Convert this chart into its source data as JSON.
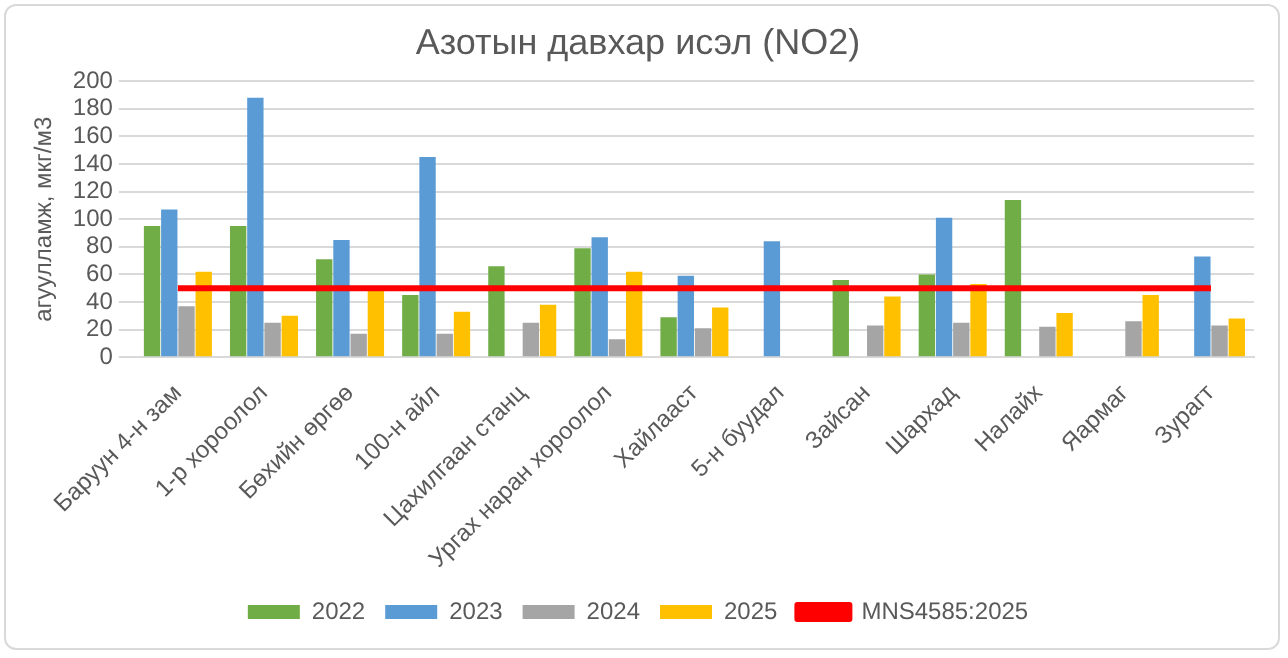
{
  "chart_data": {
    "type": "bar",
    "title": "Азотын давхар исэл (NO2)",
    "ylabel": "агуулламж, мкг/м3",
    "categories": [
      "Баруун 4-н зам",
      "1-р хороолол",
      "Бөхийн өргөө",
      "100-н айл",
      "Цахилгаан станц",
      "Ургах наран хороолол",
      "Хайлааст",
      "5-н буудал",
      "Зайсан",
      "Шархад",
      "Налайх",
      "Яармаг",
      "Зурагт"
    ],
    "series": [
      {
        "name": "2022",
        "color": "#70ad47",
        "values": [
          95,
          95,
          71,
          45,
          66,
          79,
          29,
          null,
          56,
          60,
          114,
          null,
          null
        ]
      },
      {
        "name": "2023",
        "color": "#5b9bd5",
        "values": [
          107,
          188,
          85,
          145,
          null,
          87,
          59,
          84,
          null,
          101,
          null,
          null,
          73
        ]
      },
      {
        "name": "2024",
        "color": "#a5a5a5",
        "values": [
          37,
          25,
          17,
          17,
          25,
          13,
          21,
          null,
          23,
          25,
          22,
          26,
          23
        ]
      },
      {
        "name": "2025",
        "color": "#ffc000",
        "values": [
          62,
          30,
          50,
          33,
          38,
          62,
          36,
          null,
          44,
          53,
          32,
          45,
          28
        ]
      },
      {
        "name": "MNS4585:2025",
        "type": "line",
        "color": "#ff0000",
        "values": [
          50,
          50,
          50,
          50,
          50,
          50,
          50,
          50,
          50,
          50,
          50,
          50,
          50
        ]
      }
    ],
    "ylim": [
      0,
      200
    ],
    "yticks": [
      0,
      20,
      40,
      60,
      80,
      100,
      120,
      140,
      160,
      180,
      200
    ],
    "grid": "y",
    "legend": "bottom",
    "marker": "none"
  }
}
